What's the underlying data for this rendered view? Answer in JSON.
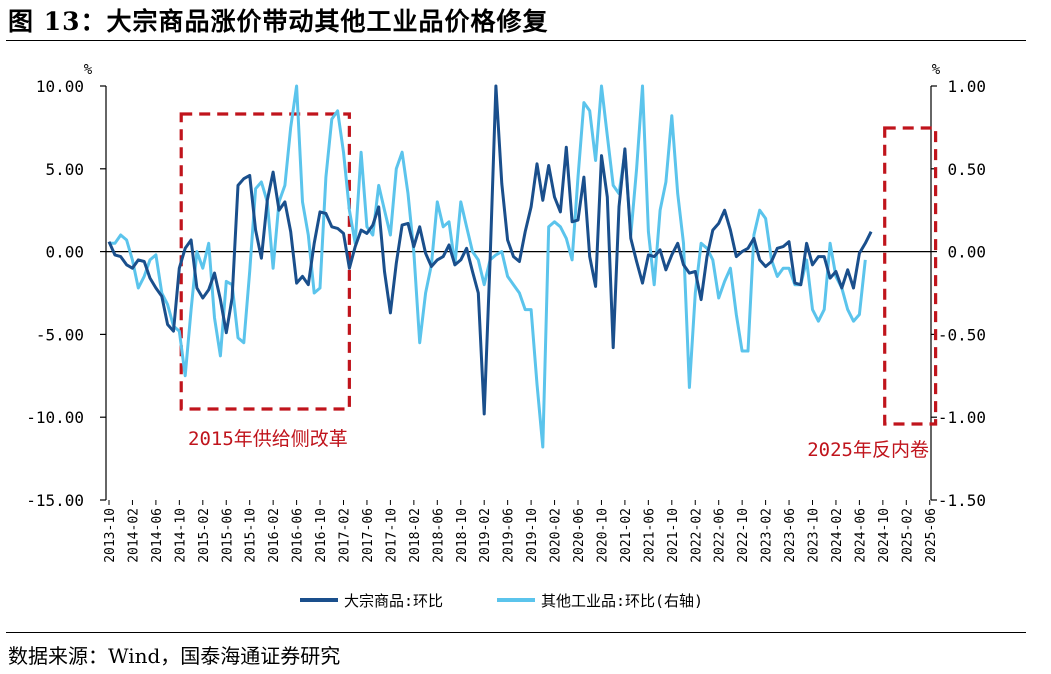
{
  "figure": {
    "title": "图 13：大宗商品涨价带动其他工业品价格修复",
    "source": "数据来源：Wind，国泰海通证券研究"
  },
  "colors": {
    "series_dark": "#1a4f8c",
    "series_light": "#5bc4ec",
    "annotation": "#c0141c",
    "axis": "#000000"
  },
  "chart_data": {
    "type": "line",
    "unit_left": "%",
    "unit_right": "%",
    "y_left": {
      "lim": [
        -15,
        10
      ],
      "ticks": [
        "10.00",
        "5.00",
        "0.00",
        "-5.00",
        "-10.00",
        "-15.00"
      ]
    },
    "y_right": {
      "lim": [
        -1.5,
        1.0
      ],
      "ticks": [
        "1.00",
        "0.50",
        "0.00",
        "-0.50",
        "-1.00",
        "-1.50"
      ]
    },
    "x_start": "2013-10",
    "x_tick_labels": [
      "2013-10",
      "2014-02",
      "2014-06",
      "2014-10",
      "2015-02",
      "2015-06",
      "2015-10",
      "2016-02",
      "2016-06",
      "2016-10",
      "2017-02",
      "2017-06",
      "2017-10",
      "2018-02",
      "2018-06",
      "2018-10",
      "2019-02",
      "2019-06",
      "2019-10",
      "2020-02",
      "2020-06",
      "2020-10",
      "2021-02",
      "2021-06",
      "2021-10",
      "2022-02",
      "2022-06",
      "2022-10",
      "2023-02",
      "2023-06",
      "2023-10",
      "2024-02",
      "2024-06",
      "2024-10",
      "2025-02",
      "2025-06"
    ],
    "legend": [
      {
        "label": "大宗商品:环比",
        "color": "#1a4f8c"
      },
      {
        "label": "其他工业品:环比(右轴)",
        "color": "#5bc4ec"
      }
    ],
    "legend_position": "bottom",
    "annotations": [
      {
        "label": "2015年供给侧改革",
        "range": [
          "2014-11",
          "2017-03"
        ]
      },
      {
        "label": "2025年反内卷",
        "range": [
          "2024-11",
          "2025-07"
        ]
      }
    ],
    "series": [
      {
        "name": "大宗商品:环比",
        "axis": "left",
        "values": [
          0.6,
          -0.2,
          -0.3,
          -0.8,
          -1.0,
          -0.5,
          -0.6,
          -1.6,
          -2.2,
          -2.7,
          -4.4,
          -4.8,
          -1.0,
          0.2,
          0.7,
          -2.2,
          -2.8,
          -2.3,
          -1.3,
          -2.9,
          -4.9,
          -2.8,
          4.0,
          4.4,
          4.6,
          1.3,
          -0.4,
          3.1,
          4.8,
          2.5,
          3.0,
          1.2,
          -1.9,
          -1.5,
          -2.0,
          0.5,
          2.4,
          2.3,
          1.5,
          1.4,
          1.1,
          -1.0,
          0.3,
          1.3,
          1.1,
          1.6,
          2.7,
          -1.2,
          -3.7,
          -0.7,
          1.6,
          1.7,
          0.3,
          1.5,
          -0.1,
          -0.9,
          -0.5,
          -0.3,
          0.4,
          -0.8,
          -0.5,
          0.2,
          -1.2,
          -2.5,
          -9.8,
          -0.5,
          10.0,
          4.1,
          0.7,
          -0.3,
          -0.6,
          1.2,
          2.7,
          5.3,
          3.1,
          5.2,
          3.3,
          2.4,
          6.3,
          1.8,
          1.9,
          4.5,
          -0.3,
          -2.1,
          5.8,
          3.3,
          -5.8,
          2.7,
          6.2,
          0.8,
          -0.6,
          -1.9,
          -0.2,
          -0.3,
          0.1,
          -1.1,
          -0.2,
          0.5,
          -0.8,
          -1.3,
          -1.2,
          -2.9,
          -0.3,
          1.3,
          1.7,
          2.5,
          1.3,
          -0.3,
          0.0,
          0.2,
          0.8,
          -0.5,
          -0.9,
          -0.6,
          0.2,
          0.3,
          0.6,
          -1.9,
          -2.0,
          0.5,
          -0.8,
          -0.3,
          -0.3,
          -1.6,
          -1.2,
          -2.2,
          -1.1,
          -2.2,
          -0.1,
          0.5,
          1.2
        ]
      },
      {
        "name": "其他工业品:环比(右轴)",
        "axis": "right",
        "values": [
          0.05,
          0.05,
          0.1,
          0.07,
          -0.05,
          -0.22,
          -0.15,
          -0.05,
          -0.02,
          -0.25,
          -0.32,
          -0.45,
          -0.48,
          -0.75,
          -0.35,
          0.0,
          -0.1,
          0.05,
          -0.4,
          -0.63,
          -0.18,
          -0.2,
          -0.52,
          -0.55,
          -0.12,
          0.38,
          0.42,
          0.3,
          -0.1,
          0.3,
          0.4,
          0.75,
          1.0,
          0.3,
          0.1,
          -0.25,
          -0.22,
          0.45,
          0.8,
          0.85,
          0.6,
          0.25,
          0.05,
          0.6,
          0.15,
          0.1,
          0.4,
          0.25,
          0.1,
          0.5,
          0.6,
          0.35,
          0.0,
          -0.55,
          -0.25,
          -0.08,
          0.3,
          0.15,
          0.18,
          -0.08,
          0.3,
          0.15,
          0.0,
          -0.05,
          -0.2,
          -0.05,
          -0.02,
          0.0,
          -0.15,
          -0.2,
          -0.25,
          -0.35,
          -0.35,
          -0.8,
          -1.18,
          0.15,
          0.18,
          0.15,
          0.08,
          -0.05,
          0.45,
          0.9,
          0.85,
          0.55,
          1.0,
          0.7,
          0.4,
          0.35,
          0.6,
          0.1,
          0.5,
          1.0,
          0.12,
          -0.2,
          0.25,
          0.42,
          0.82,
          0.35,
          0.05,
          -0.82,
          -0.25,
          0.05,
          0.02,
          -0.05,
          -0.28,
          -0.18,
          -0.1,
          -0.38,
          -0.6,
          -0.6,
          0.1,
          0.25,
          0.2,
          -0.05,
          -0.15,
          -0.1,
          -0.1,
          -0.2,
          -0.2,
          -0.05,
          -0.35,
          -0.42,
          -0.35,
          0.05,
          -0.15,
          -0.22,
          -0.35,
          -0.42,
          -0.38,
          -0.05
        ]
      }
    ]
  }
}
